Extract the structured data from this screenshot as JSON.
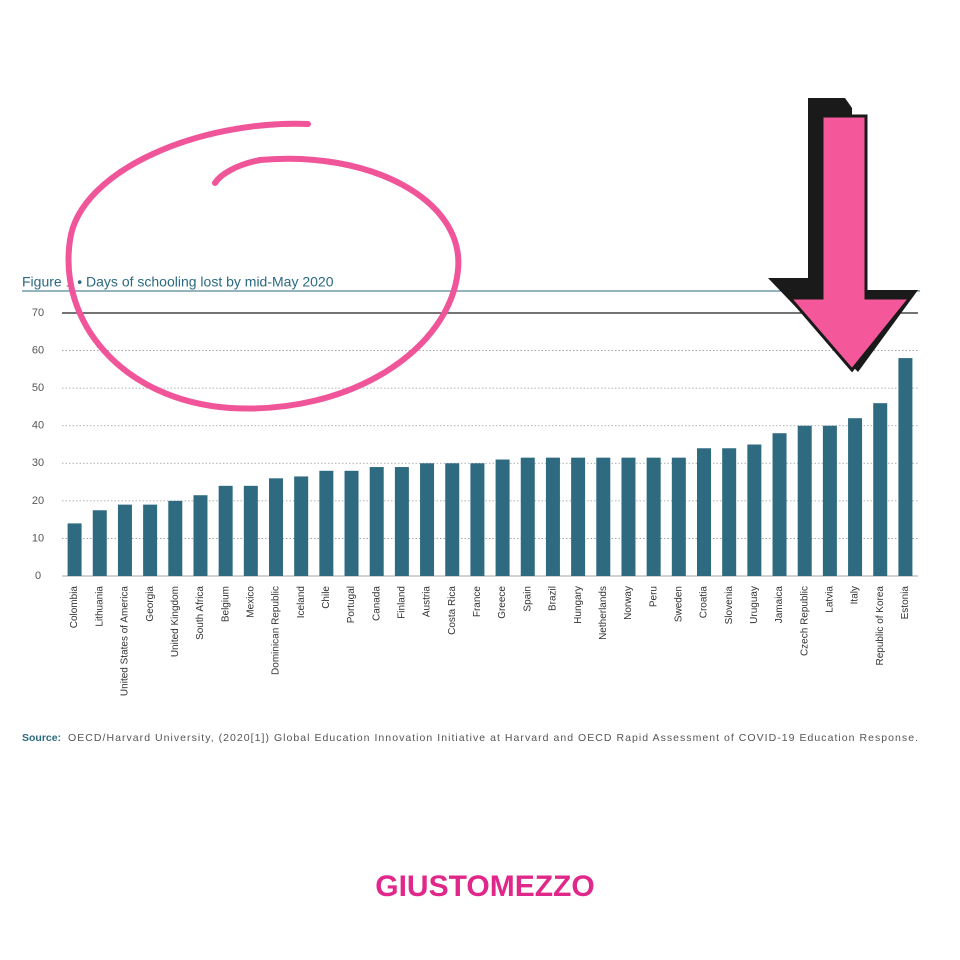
{
  "chart_data": {
    "type": "bar",
    "title": "Figure 1 • Days of schooling lost by mid-May 2020",
    "categories": [
      "Colombia",
      "Lithuania",
      "United States of America",
      "Georgia",
      "United Kingdom",
      "South Africa",
      "Belgium",
      "Mexico",
      "Dominican Republic",
      "Iceland",
      "Chile",
      "Portugal",
      "Canada",
      "Finland",
      "Austria",
      "Costa Rica",
      "France",
      "Greece",
      "Spain",
      "Brazil",
      "Hungary",
      "Netherlands",
      "Norway",
      "Peru",
      "Sweden",
      "Croatia",
      "Slovenia",
      "Uruguay",
      "Jamaica",
      "Czech Republic",
      "Latvia",
      "Italy",
      "Republic of Korea",
      "Estonia"
    ],
    "values": [
      14,
      17.5,
      19,
      19,
      20,
      21.5,
      24,
      24,
      26,
      26.5,
      28,
      28,
      29,
      29,
      30,
      30,
      30,
      31,
      31.5,
      31.5,
      31.5,
      31.5,
      31.5,
      31.5,
      31.5,
      34,
      34,
      35,
      38,
      40,
      40,
      42,
      46,
      58
    ],
    "color": "#2e6b80",
    "ylim": [
      0,
      70
    ],
    "yticks": [
      0,
      10,
      20,
      30,
      40,
      50,
      60,
      70
    ],
    "grid": true,
    "source_label": "Source:",
    "source_text": "OECD/Harvard University, (2020[1]) Global Education Innovation Initiative at Harvard and OECD Rapid Assessment of COVID-19 Education Response.",
    "logo": "GIUSTOMEZZO"
  }
}
